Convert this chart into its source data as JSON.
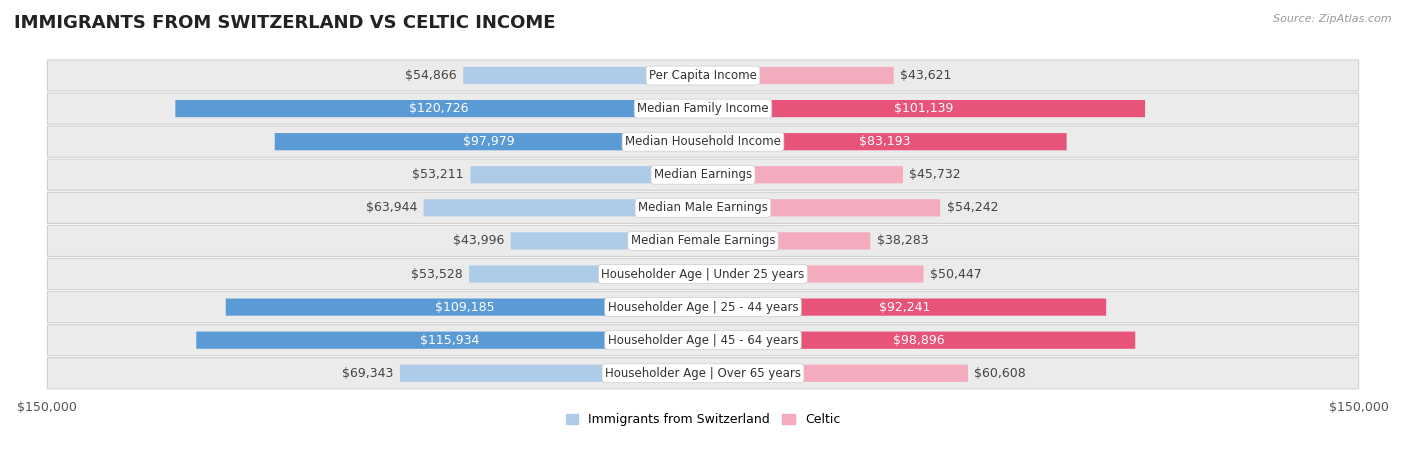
{
  "title": "IMMIGRANTS FROM SWITZERLAND VS CELTIC INCOME",
  "source": "Source: ZipAtlas.com",
  "categories": [
    "Per Capita Income",
    "Median Family Income",
    "Median Household Income",
    "Median Earnings",
    "Median Male Earnings",
    "Median Female Earnings",
    "Householder Age | Under 25 years",
    "Householder Age | 25 - 44 years",
    "Householder Age | 45 - 64 years",
    "Householder Age | Over 65 years"
  ],
  "swiss_values": [
    54866,
    120726,
    97979,
    53211,
    63944,
    43996,
    53528,
    109185,
    115934,
    69343
  ],
  "celtic_values": [
    43621,
    101139,
    83193,
    45732,
    54242,
    38283,
    50447,
    92241,
    98896,
    60608
  ],
  "swiss_color_light": "#AECCE8",
  "swiss_color_dark": "#5B9BD5",
  "celtic_color_light": "#F4ABBE",
  "celtic_color_dark": "#E8537A",
  "threshold": 80000,
  "max_value": 150000,
  "background_color": "#ffffff",
  "row_bg_color": "#EBEBEB",
  "row_border_color": "#D0D0D0",
  "swiss_legend_label": "Immigrants from Switzerland",
  "celtic_legend_label": "Celtic",
  "title_fontsize": 13,
  "source_fontsize": 8,
  "axis_label_fontsize": 9,
  "bar_label_fontsize": 9,
  "category_fontsize": 8.5,
  "legend_fontsize": 9
}
